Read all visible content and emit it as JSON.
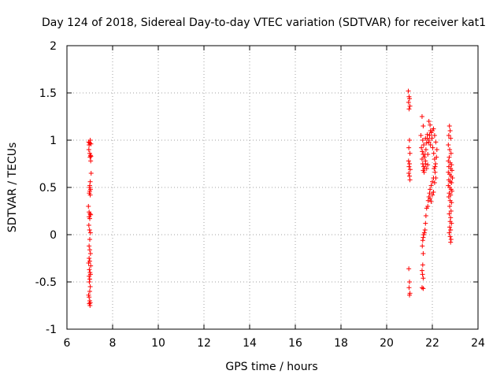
{
  "chart_data": {
    "type": "scatter",
    "title": "Day 124 of 2018, Sidereal Day-to-day VTEC variation (SDTVAR) for receiver kat1",
    "xlabel": "GPS time / hours",
    "ylabel": "SDTVAR / TECUs",
    "xlim": [
      6,
      24
    ],
    "ylim": [
      -1,
      2
    ],
    "xticks": [
      "6",
      "8",
      "10",
      "12",
      "14",
      "16",
      "18",
      "20",
      "22",
      "24"
    ],
    "yticks": [
      "-1",
      "-0.5",
      "0",
      "0.5",
      "1",
      "1.5",
      "2"
    ],
    "grid": true,
    "marker": "+",
    "color": "#ff0000",
    "series": [
      {
        "name": "kat1",
        "points": [
          [
            6.95,
            0.98
          ],
          [
            6.97,
            0.95
          ],
          [
            7.0,
            0.97
          ],
          [
            7.02,
            1.0
          ],
          [
            7.05,
            0.96
          ],
          [
            6.96,
            0.9
          ],
          [
            7.0,
            0.86
          ],
          [
            7.03,
            0.84
          ],
          [
            7.05,
            0.83
          ],
          [
            7.01,
            0.82
          ],
          [
            7.04,
            0.78
          ],
          [
            7.06,
            0.65
          ],
          [
            7.02,
            0.56
          ],
          [
            7.0,
            0.52
          ],
          [
            6.99,
            0.5
          ],
          [
            7.03,
            0.48
          ],
          [
            7.0,
            0.46
          ],
          [
            6.98,
            0.44
          ],
          [
            7.02,
            0.42
          ],
          [
            6.94,
            0.3
          ],
          [
            6.97,
            0.24
          ],
          [
            7.01,
            0.22
          ],
          [
            7.04,
            0.21
          ],
          [
            6.97,
            0.19
          ],
          [
            7.0,
            0.17
          ],
          [
            6.96,
            0.1
          ],
          [
            6.99,
            0.05
          ],
          [
            7.03,
            0.02
          ],
          [
            7.0,
            -0.05
          ],
          [
            6.97,
            -0.12
          ],
          [
            7.0,
            -0.16
          ],
          [
            7.03,
            -0.2
          ],
          [
            6.97,
            -0.25
          ],
          [
            7.0,
            -0.28
          ],
          [
            6.95,
            -0.3
          ],
          [
            7.04,
            -0.33
          ],
          [
            6.98,
            -0.37
          ],
          [
            7.01,
            -0.4
          ],
          [
            7.03,
            -0.42
          ],
          [
            6.97,
            -0.44
          ],
          [
            7.0,
            -0.47
          ],
          [
            6.98,
            -0.5
          ],
          [
            7.02,
            -0.55
          ],
          [
            7.0,
            -0.6
          ],
          [
            6.95,
            -0.64
          ],
          [
            6.97,
            -0.66
          ],
          [
            7.0,
            -0.7
          ],
          [
            7.02,
            -0.72
          ],
          [
            6.98,
            -0.73
          ],
          [
            7.01,
            -0.75
          ],
          [
            20.95,
            1.52
          ],
          [
            20.98,
            1.46
          ],
          [
            21.0,
            1.44
          ],
          [
            20.96,
            1.4
          ],
          [
            21.02,
            1.36
          ],
          [
            20.98,
            1.33
          ],
          [
            21.0,
            1.0
          ],
          [
            20.97,
            0.92
          ],
          [
            21.02,
            0.86
          ],
          [
            20.96,
            0.78
          ],
          [
            21.0,
            0.75
          ],
          [
            20.98,
            0.72
          ],
          [
            21.03,
            0.69
          ],
          [
            20.97,
            0.65
          ],
          [
            21.0,
            0.62
          ],
          [
            21.02,
            0.58
          ],
          [
            20.97,
            -0.36
          ],
          [
            21.0,
            -0.5
          ],
          [
            20.98,
            -0.56
          ],
          [
            21.02,
            -0.62
          ],
          [
            21.0,
            -0.64
          ],
          [
            21.55,
            1.25
          ],
          [
            21.6,
            1.15
          ],
          [
            21.5,
            1.05
          ],
          [
            21.58,
            1.0
          ],
          [
            21.62,
            0.95
          ],
          [
            21.52,
            0.92
          ],
          [
            21.56,
            0.88
          ],
          [
            21.6,
            0.85
          ],
          [
            21.65,
            0.82
          ],
          [
            21.55,
            0.8
          ],
          [
            21.58,
            0.75
          ],
          [
            21.62,
            0.72
          ],
          [
            21.66,
            0.7
          ],
          [
            21.6,
            0.68
          ],
          [
            21.64,
            0.66
          ],
          [
            21.7,
            0.78
          ],
          [
            21.72,
            0.9
          ],
          [
            21.75,
            0.97
          ],
          [
            21.7,
            1.02
          ],
          [
            21.78,
            1.06
          ],
          [
            21.8,
            0.85
          ],
          [
            21.85,
            0.98
          ],
          [
            21.88,
            1.05
          ],
          [
            21.92,
            1.1
          ],
          [
            21.95,
            1.08
          ],
          [
            21.98,
            1.02
          ],
          [
            22.0,
            1.1
          ],
          [
            22.05,
            1.12
          ],
          [
            22.1,
            1.05
          ],
          [
            22.15,
            0.98
          ],
          [
            22.02,
            0.92
          ],
          [
            22.06,
            0.86
          ],
          [
            22.1,
            0.8
          ],
          [
            22.14,
            0.75
          ],
          [
            22.08,
            0.7
          ],
          [
            22.12,
            0.66
          ],
          [
            22.05,
            0.6
          ],
          [
            22.0,
            0.56
          ],
          [
            21.95,
            0.52
          ],
          [
            21.9,
            0.48
          ],
          [
            21.88,
            0.44
          ],
          [
            21.85,
            0.4
          ],
          [
            21.82,
            0.36
          ],
          [
            21.8,
            0.3
          ],
          [
            21.75,
            0.28
          ],
          [
            21.72,
            0.2
          ],
          [
            21.7,
            0.12
          ],
          [
            21.68,
            0.05
          ],
          [
            21.65,
            0.02
          ],
          [
            21.62,
            0.0
          ],
          [
            21.6,
            -0.03
          ],
          [
            21.58,
            -0.06
          ],
          [
            21.56,
            -0.12
          ],
          [
            21.6,
            -0.2
          ],
          [
            21.58,
            -0.32
          ],
          [
            21.55,
            -0.38
          ],
          [
            21.57,
            -0.42
          ],
          [
            21.6,
            -0.46
          ],
          [
            21.55,
            -0.56
          ],
          [
            21.6,
            -0.57
          ],
          [
            21.9,
            0.38
          ],
          [
            21.95,
            0.35
          ],
          [
            22.0,
            0.42
          ],
          [
            22.05,
            0.45
          ],
          [
            22.1,
            0.55
          ],
          [
            22.15,
            0.6
          ],
          [
            21.78,
            1.02
          ],
          [
            21.85,
            1.0
          ],
          [
            21.92,
            0.95
          ],
          [
            22.2,
            0.9
          ],
          [
            21.85,
            1.2
          ],
          [
            21.9,
            1.16
          ],
          [
            21.7,
            0.75
          ],
          [
            21.75,
            0.7
          ],
          [
            21.8,
            0.74
          ],
          [
            21.68,
            0.85
          ],
          [
            22.18,
            0.82
          ],
          [
            22.12,
            0.72
          ],
          [
            22.75,
            1.15
          ],
          [
            22.78,
            1.1
          ],
          [
            22.72,
            1.05
          ],
          [
            22.8,
            1.02
          ],
          [
            22.7,
            0.95
          ],
          [
            22.76,
            0.9
          ],
          [
            22.82,
            0.86
          ],
          [
            22.74,
            0.82
          ],
          [
            22.7,
            0.78
          ],
          [
            22.78,
            0.76
          ],
          [
            22.84,
            0.74
          ],
          [
            22.72,
            0.72
          ],
          [
            22.8,
            0.7
          ],
          [
            22.86,
            0.68
          ],
          [
            22.7,
            0.66
          ],
          [
            22.76,
            0.64
          ],
          [
            22.82,
            0.62
          ],
          [
            22.88,
            0.6
          ],
          [
            22.72,
            0.58
          ],
          [
            22.78,
            0.56
          ],
          [
            22.84,
            0.55
          ],
          [
            22.7,
            0.52
          ],
          [
            22.76,
            0.5
          ],
          [
            22.82,
            0.48
          ],
          [
            22.86,
            0.46
          ],
          [
            22.74,
            0.44
          ],
          [
            22.8,
            0.42
          ],
          [
            22.72,
            0.4
          ],
          [
            22.78,
            0.36
          ],
          [
            22.84,
            0.34
          ],
          [
            22.76,
            0.3
          ],
          [
            22.82,
            0.25
          ],
          [
            22.74,
            0.22
          ],
          [
            22.8,
            0.18
          ],
          [
            22.78,
            0.14
          ],
          [
            22.84,
            0.12
          ],
          [
            22.76,
            0.08
          ],
          [
            22.8,
            0.05
          ],
          [
            22.74,
            0.02
          ],
          [
            22.78,
            -0.02
          ],
          [
            22.82,
            -0.05
          ],
          [
            22.8,
            -0.08
          ]
        ]
      }
    ]
  }
}
